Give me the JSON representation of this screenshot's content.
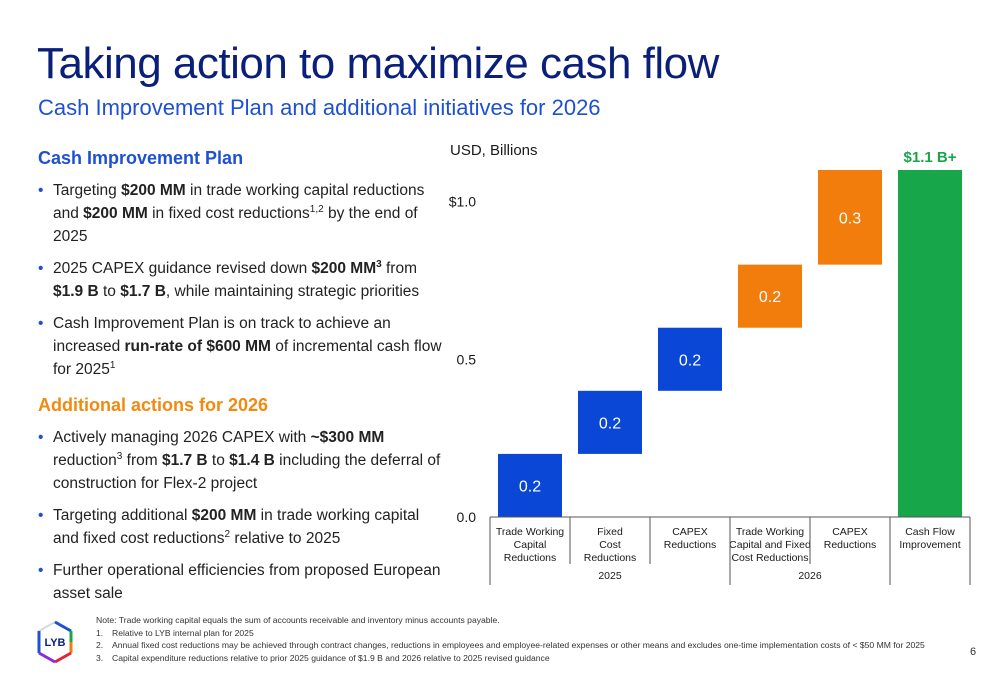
{
  "title": "Taking action to maximize cash flow",
  "subtitle": "Cash Improvement Plan and additional initiatives for 2026",
  "left": {
    "section1_heading": "Cash Improvement Plan",
    "section1_bullets": [
      [
        "Targeting ",
        {
          "b": "$200 MM"
        },
        " in trade working capital reductions and ",
        {
          "b": "$200 MM"
        },
        " in fixed cost reductions",
        {
          "sup": "1,2"
        },
        " by the end of 2025"
      ],
      [
        "2025 CAPEX guidance revised down ",
        {
          "b": "$200 MM"
        },
        {
          "bsup": "3"
        },
        " from ",
        {
          "b": "$1.9 B"
        },
        " to ",
        {
          "b": "$1.7 B"
        },
        ", while maintaining strategic priorities"
      ],
      [
        "Cash Improvement Plan is on track to achieve an increased ",
        {
          "b": "run-rate of $600 MM"
        },
        " of incremental cash flow for 2025",
        {
          "sup": "1"
        }
      ]
    ],
    "section2_heading": "Additional actions for 2026",
    "section2_bullets": [
      [
        "Actively managing 2026 CAPEX with ",
        {
          "b": "~$300 MM"
        },
        " reduction",
        {
          "sup": "3"
        },
        " from ",
        {
          "b": "$1.7 B"
        },
        " to ",
        {
          "b": "$1.4 B"
        },
        " including the deferral of construction for Flex-2 project"
      ],
      [
        "Targeting additional ",
        {
          "b": "$200 MM"
        },
        " in trade working capital and fixed cost reductions",
        {
          "sup": "2"
        },
        " relative to 2025"
      ],
      [
        "Further operational efficiencies from proposed European asset sale"
      ]
    ]
  },
  "chart_data": {
    "type": "bar",
    "variant": "waterfall",
    "unit_label": "USD, Billions",
    "ylim": [
      0,
      1.1
    ],
    "yticks": [
      {
        "value": 0.0,
        "label": "0.0"
      },
      {
        "value": 0.5,
        "label": "0.5"
      },
      {
        "value": 1.0,
        "label": "$1.0"
      }
    ],
    "bars": [
      {
        "category": [
          "Trade Working",
          "Capital",
          "Reductions"
        ],
        "start": 0.0,
        "end": 0.2,
        "label": "0.2",
        "color": "#0a47d6",
        "group": "2025"
      },
      {
        "category": [
          "Fixed",
          "Cost",
          "Reductions"
        ],
        "start": 0.2,
        "end": 0.4,
        "label": "0.2",
        "color": "#0a47d6",
        "group": "2025"
      },
      {
        "category": [
          "CAPEX",
          "Reductions"
        ],
        "start": 0.4,
        "end": 0.6,
        "label": "0.2",
        "color": "#0a47d6",
        "group": "2025"
      },
      {
        "category": [
          "Trade Working",
          "Capital and Fixed",
          "Cost Reductions"
        ],
        "start": 0.6,
        "end": 0.8,
        "label": "0.2",
        "color": "#f27d0c",
        "group": "2026"
      },
      {
        "category": [
          "CAPEX",
          "Reductions"
        ],
        "start": 0.8,
        "end": 1.1,
        "label": "0.3",
        "color": "#f27d0c",
        "group": "2026"
      },
      {
        "category": [
          "Cash Flow",
          "Improvement"
        ],
        "start": 0.0,
        "end": 1.1,
        "label": "",
        "color": "#17a64a",
        "group": ""
      }
    ],
    "total_label": "$1.1 B+",
    "total_label_color": "#17a64a",
    "groups": [
      {
        "name": "2025",
        "from": 0,
        "to": 2
      },
      {
        "name": "2026",
        "from": 3,
        "to": 4
      }
    ],
    "grid": false,
    "legend": "none"
  },
  "footnotes": {
    "note": "Note: Trade working capital equals the sum of accounts receivable and inventory minus accounts payable.",
    "items": [
      {
        "num": "1.",
        "text": "Relative to LYB internal plan for 2025"
      },
      {
        "num": "2.",
        "text": "Annual fixed cost reductions may be achieved through contract changes, reductions in employees and employee-related expenses or other means and excludes one-time implementation costs of < $50 MM for 2025"
      },
      {
        "num": "3.",
        "text": "Capital expenditure reductions relative to prior 2025 guidance of $1.9 B and 2026 relative to 2025 revised guidance"
      }
    ]
  },
  "logo_text": "LYB",
  "page_number": "6"
}
